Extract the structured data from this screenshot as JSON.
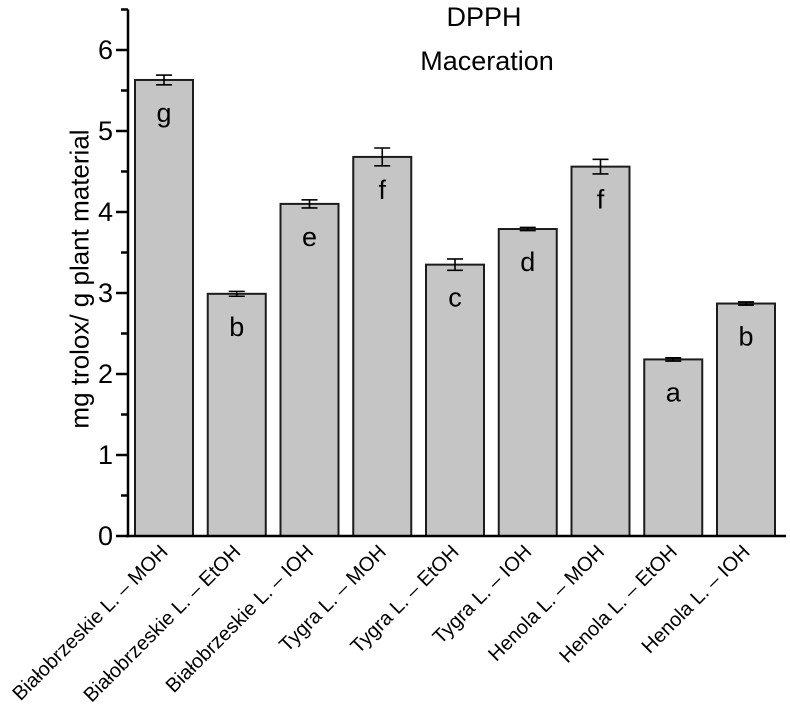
{
  "chart_data": {
    "type": "bar",
    "title": "DPPH",
    "subtitle": "Maceration",
    "ylabel": "mg trolox/ g plant material",
    "xlabel": "",
    "ylim": [
      0,
      6.5
    ],
    "yticks_major": [
      0,
      1,
      2,
      3,
      4,
      5,
      6
    ],
    "yticks_minor": [
      0.5,
      1.5,
      2.5,
      3.5,
      4.5,
      5.5,
      6.5
    ],
    "grid": false,
    "legend_position": "none",
    "bar_fill_color": "#c5c5c5",
    "bar_stroke_color": "#1c1c1c",
    "axis_color": "#000000",
    "categories": [
      "Białobrzeskie L. – MOH",
      "Białobrzeskie L. – EtOH",
      "Białobrzeskie L. – IOH",
      "Tygra L. – MOH",
      "Tygra L. – EtOH",
      "Tygra L. – IOH",
      "Henola L. – MOH",
      "Henola L. – EtOH",
      "Henola L. – IOH"
    ],
    "values": [
      5.63,
      2.99,
      4.1,
      4.68,
      3.35,
      3.79,
      4.56,
      2.18,
      2.87
    ],
    "errors": [
      0.06,
      0.03,
      0.05,
      0.11,
      0.07,
      0.02,
      0.09,
      0.02,
      0.02
    ],
    "significance_letters": [
      "g",
      "b",
      "e",
      "f",
      "c",
      "d",
      "f",
      "a",
      "b"
    ]
  }
}
